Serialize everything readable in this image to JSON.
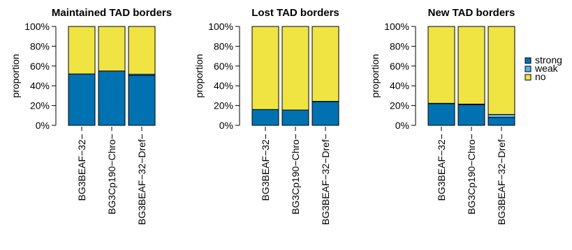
{
  "chart_data": [
    {
      "type": "bar",
      "stacked": true,
      "title": "Maintained TAD borders",
      "ylabel": "proportion",
      "ylim": [
        0,
        1
      ],
      "yticks": [
        "0%",
        "20%",
        "40%",
        "60%",
        "80%",
        "100%"
      ],
      "categories": [
        "BG3BEAF−32−",
        "BG3Cp190−Chro−",
        "BG3BEAF−32−Dref−"
      ],
      "series": [
        {
          "name": "strong",
          "values": [
            0.52,
            0.55,
            0.505
          ]
        },
        {
          "name": "weak",
          "values": [
            0.0,
            0.0,
            0.012
          ]
        },
        {
          "name": "no",
          "values": [
            0.48,
            0.45,
            0.483
          ]
        }
      ]
    },
    {
      "type": "bar",
      "stacked": true,
      "title": "Lost TAD borders",
      "ylabel": "proportion",
      "ylim": [
        0,
        1
      ],
      "yticks": [
        "0%",
        "20%",
        "40%",
        "60%",
        "80%",
        "100%"
      ],
      "categories": [
        "BG3BEAF−32−",
        "BG3Cp190−Chro−",
        "BG3BEAF−32−Dref−"
      ],
      "series": [
        {
          "name": "strong",
          "values": [
            0.16,
            0.155,
            0.24
          ]
        },
        {
          "name": "weak",
          "values": [
            0.0,
            0.0,
            0.003
          ]
        },
        {
          "name": "no",
          "values": [
            0.84,
            0.845,
            0.757
          ]
        }
      ]
    },
    {
      "type": "bar",
      "stacked": true,
      "title": "New TAD borders",
      "ylabel": "proportion",
      "ylim": [
        0,
        1
      ],
      "yticks": [
        "0%",
        "20%",
        "40%",
        "60%",
        "80%",
        "100%"
      ],
      "categories": [
        "BG3BEAF−32−",
        "BG3Cp190−Chro−",
        "BG3BEAF−32−Dref−"
      ],
      "series": [
        {
          "name": "strong",
          "values": [
            0.22,
            0.21,
            0.08
          ]
        },
        {
          "name": "weak",
          "values": [
            0.003,
            0.005,
            0.03
          ]
        },
        {
          "name": "no",
          "values": [
            0.777,
            0.785,
            0.89
          ]
        }
      ]
    }
  ],
  "legend": {
    "placement": "right",
    "items": [
      {
        "label": "strong",
        "color": "#0072b2"
      },
      {
        "label": "weak",
        "color": "#56b4e9"
      },
      {
        "label": "no",
        "color": "#f0e442"
      }
    ]
  },
  "colors": {
    "strong": "#0072b2",
    "weak": "#56b4e9",
    "no": "#f0e442"
  }
}
